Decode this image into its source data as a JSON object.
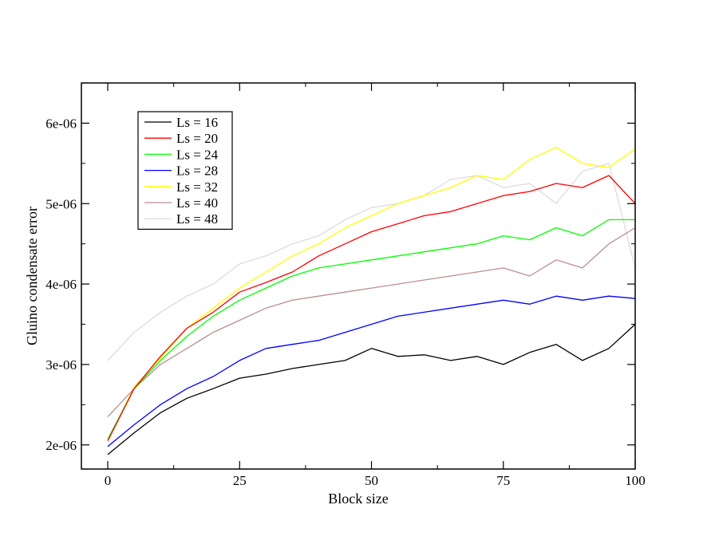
{
  "chart_data": {
    "type": "line",
    "xlabel": "Block size",
    "ylabel": "Gluino condensate error",
    "xlim": [
      -5,
      100
    ],
    "ylim": [
      1.7e-06,
      6.5e-06
    ],
    "xticks": [
      0,
      25,
      50,
      75,
      100
    ],
    "xtick_labels": [
      "0",
      "25",
      "50",
      "75",
      "100"
    ],
    "yticks": [
      2e-06,
      3e-06,
      4e-06,
      5e-06,
      6e-06
    ],
    "ytick_labels": [
      "2e-06",
      "3e-06",
      "4e-06",
      "5e-06",
      "6e-06"
    ],
    "legend_position": "top-left",
    "grid": false,
    "series": [
      {
        "name": "Ls = 16",
        "color": "#000000",
        "x": [
          0,
          5,
          10,
          15,
          20,
          25,
          30,
          35,
          40,
          45,
          50,
          55,
          60,
          65,
          70,
          75,
          80,
          85,
          90,
          95,
          100
        ],
        "values": [
          1.88e-06,
          2.15e-06,
          2.4e-06,
          2.58e-06,
          2.7e-06,
          2.83e-06,
          2.88e-06,
          2.95e-06,
          3e-06,
          3.05e-06,
          3.2e-06,
          3.1e-06,
          3.12e-06,
          3.05e-06,
          3.1e-06,
          3e-06,
          3.15e-06,
          3.25e-06,
          3.05e-06,
          3.2e-06,
          3.5e-06
        ]
      },
      {
        "name": "Ls = 20",
        "color": "#ff0000",
        "x": [
          0,
          5,
          10,
          15,
          20,
          25,
          30,
          35,
          40,
          45,
          50,
          55,
          60,
          65,
          70,
          75,
          80,
          85,
          90,
          95,
          100
        ],
        "values": [
          2.05e-06,
          2.7e-06,
          3.1e-06,
          3.45e-06,
          3.65e-06,
          3.9e-06,
          4.02e-06,
          4.15e-06,
          4.35e-06,
          4.5e-06,
          4.65e-06,
          4.75e-06,
          4.85e-06,
          4.9e-06,
          5e-06,
          5.1e-06,
          5.15e-06,
          5.25e-06,
          5.2e-06,
          5.35e-06,
          5e-06
        ]
      },
      {
        "name": "Ls = 24",
        "color": "#00ff00",
        "x": [
          0,
          5,
          10,
          15,
          20,
          25,
          30,
          35,
          40,
          45,
          50,
          55,
          60,
          65,
          70,
          75,
          80,
          85,
          90,
          95,
          100
        ],
        "values": [
          2.07e-06,
          2.7e-06,
          3.05e-06,
          3.35e-06,
          3.6e-06,
          3.8e-06,
          3.95e-06,
          4.1e-06,
          4.2e-06,
          4.25e-06,
          4.3e-06,
          4.35e-06,
          4.4e-06,
          4.45e-06,
          4.5e-06,
          4.6e-06,
          4.55e-06,
          4.7e-06,
          4.6e-06,
          4.8e-06,
          4.8e-06
        ]
      },
      {
        "name": "Ls = 28",
        "color": "#0000ff",
        "x": [
          0,
          5,
          10,
          15,
          20,
          25,
          30,
          35,
          40,
          45,
          50,
          55,
          60,
          65,
          70,
          75,
          80,
          85,
          90,
          95,
          100
        ],
        "values": [
          1.98e-06,
          2.25e-06,
          2.5e-06,
          2.7e-06,
          2.85e-06,
          3.05e-06,
          3.2e-06,
          3.25e-06,
          3.3e-06,
          3.4e-06,
          3.5e-06,
          3.6e-06,
          3.65e-06,
          3.7e-06,
          3.75e-06,
          3.8e-06,
          3.75e-06,
          3.85e-06,
          3.8e-06,
          3.85e-06,
          3.82e-06
        ]
      },
      {
        "name": "Ls = 32",
        "color": "#ffff00",
        "x": [
          0,
          5,
          10,
          15,
          20,
          25,
          30,
          35,
          40,
          45,
          50,
          55,
          60,
          65,
          70,
          75,
          80,
          85,
          90,
          95,
          100
        ],
        "values": [
          2.05e-06,
          2.72e-06,
          3.08e-06,
          3.45e-06,
          3.7e-06,
          3.95e-06,
          4.15e-06,
          4.35e-06,
          4.5e-06,
          4.7e-06,
          4.85e-06,
          5e-06,
          5.1e-06,
          5.2e-06,
          5.35e-06,
          5.3e-06,
          5.55e-06,
          5.7e-06,
          5.5e-06,
          5.45e-06,
          5.68e-06
        ]
      },
      {
        "name": "Ls = 40",
        "color": "#bc8f8f",
        "x": [
          0,
          5,
          10,
          15,
          20,
          25,
          30,
          35,
          40,
          45,
          50,
          55,
          60,
          65,
          70,
          75,
          80,
          85,
          90,
          95,
          100
        ],
        "values": [
          2.35e-06,
          2.7e-06,
          3e-06,
          3.2e-06,
          3.4e-06,
          3.55e-06,
          3.7e-06,
          3.8e-06,
          3.85e-06,
          3.9e-06,
          3.95e-06,
          4e-06,
          4.05e-06,
          4.1e-06,
          4.15e-06,
          4.2e-06,
          4.1e-06,
          4.3e-06,
          4.2e-06,
          4.5e-06,
          4.7e-06
        ]
      },
      {
        "name": "Ls = 48",
        "color": "#dcdcdc",
        "x": [
          0,
          5,
          10,
          15,
          20,
          25,
          30,
          35,
          40,
          45,
          50,
          55,
          60,
          65,
          70,
          75,
          80,
          85,
          90,
          95,
          100
        ],
        "values": [
          3.05e-06,
          3.4e-06,
          3.65e-06,
          3.85e-06,
          4e-06,
          4.25e-06,
          4.35e-06,
          4.5e-06,
          4.6e-06,
          4.8e-06,
          4.95e-06,
          5e-06,
          5.1e-06,
          5.3e-06,
          5.35e-06,
          5.2e-06,
          5.25e-06,
          5e-06,
          5.4e-06,
          5.5e-06,
          4.2e-06
        ]
      }
    ]
  }
}
